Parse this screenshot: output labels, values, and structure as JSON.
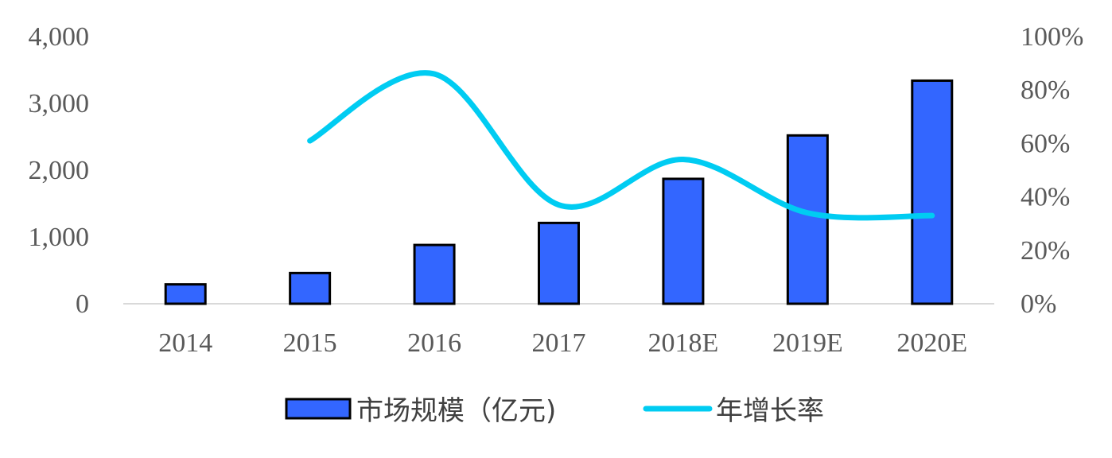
{
  "chart_data": {
    "type": "bar",
    "categories": [
      "2014",
      "2015",
      "2016",
      "2017",
      "2018E",
      "2019E",
      "2020E"
    ],
    "series": [
      {
        "name": "市场规模（亿元)",
        "type": "bar",
        "axis": "left",
        "values": [
          290,
          460,
          880,
          1210,
          1870,
          2520,
          3340
        ],
        "color": "#3366FF"
      },
      {
        "name": "年增长率",
        "type": "line",
        "axis": "right",
        "values": [
          null,
          61,
          86,
          37,
          54,
          34,
          33
        ],
        "color": "#00CCF2"
      }
    ],
    "left_axis": {
      "ylim": [
        0,
        4000
      ],
      "ticks": [
        "0",
        "1,000",
        "2,000",
        "3,000",
        "4,000"
      ]
    },
    "right_axis": {
      "ylim": [
        0,
        100
      ],
      "ticks": [
        "0%",
        "20%",
        "40%",
        "60%",
        "80%",
        "100%"
      ]
    },
    "grid": false,
    "legend": "bottom"
  }
}
